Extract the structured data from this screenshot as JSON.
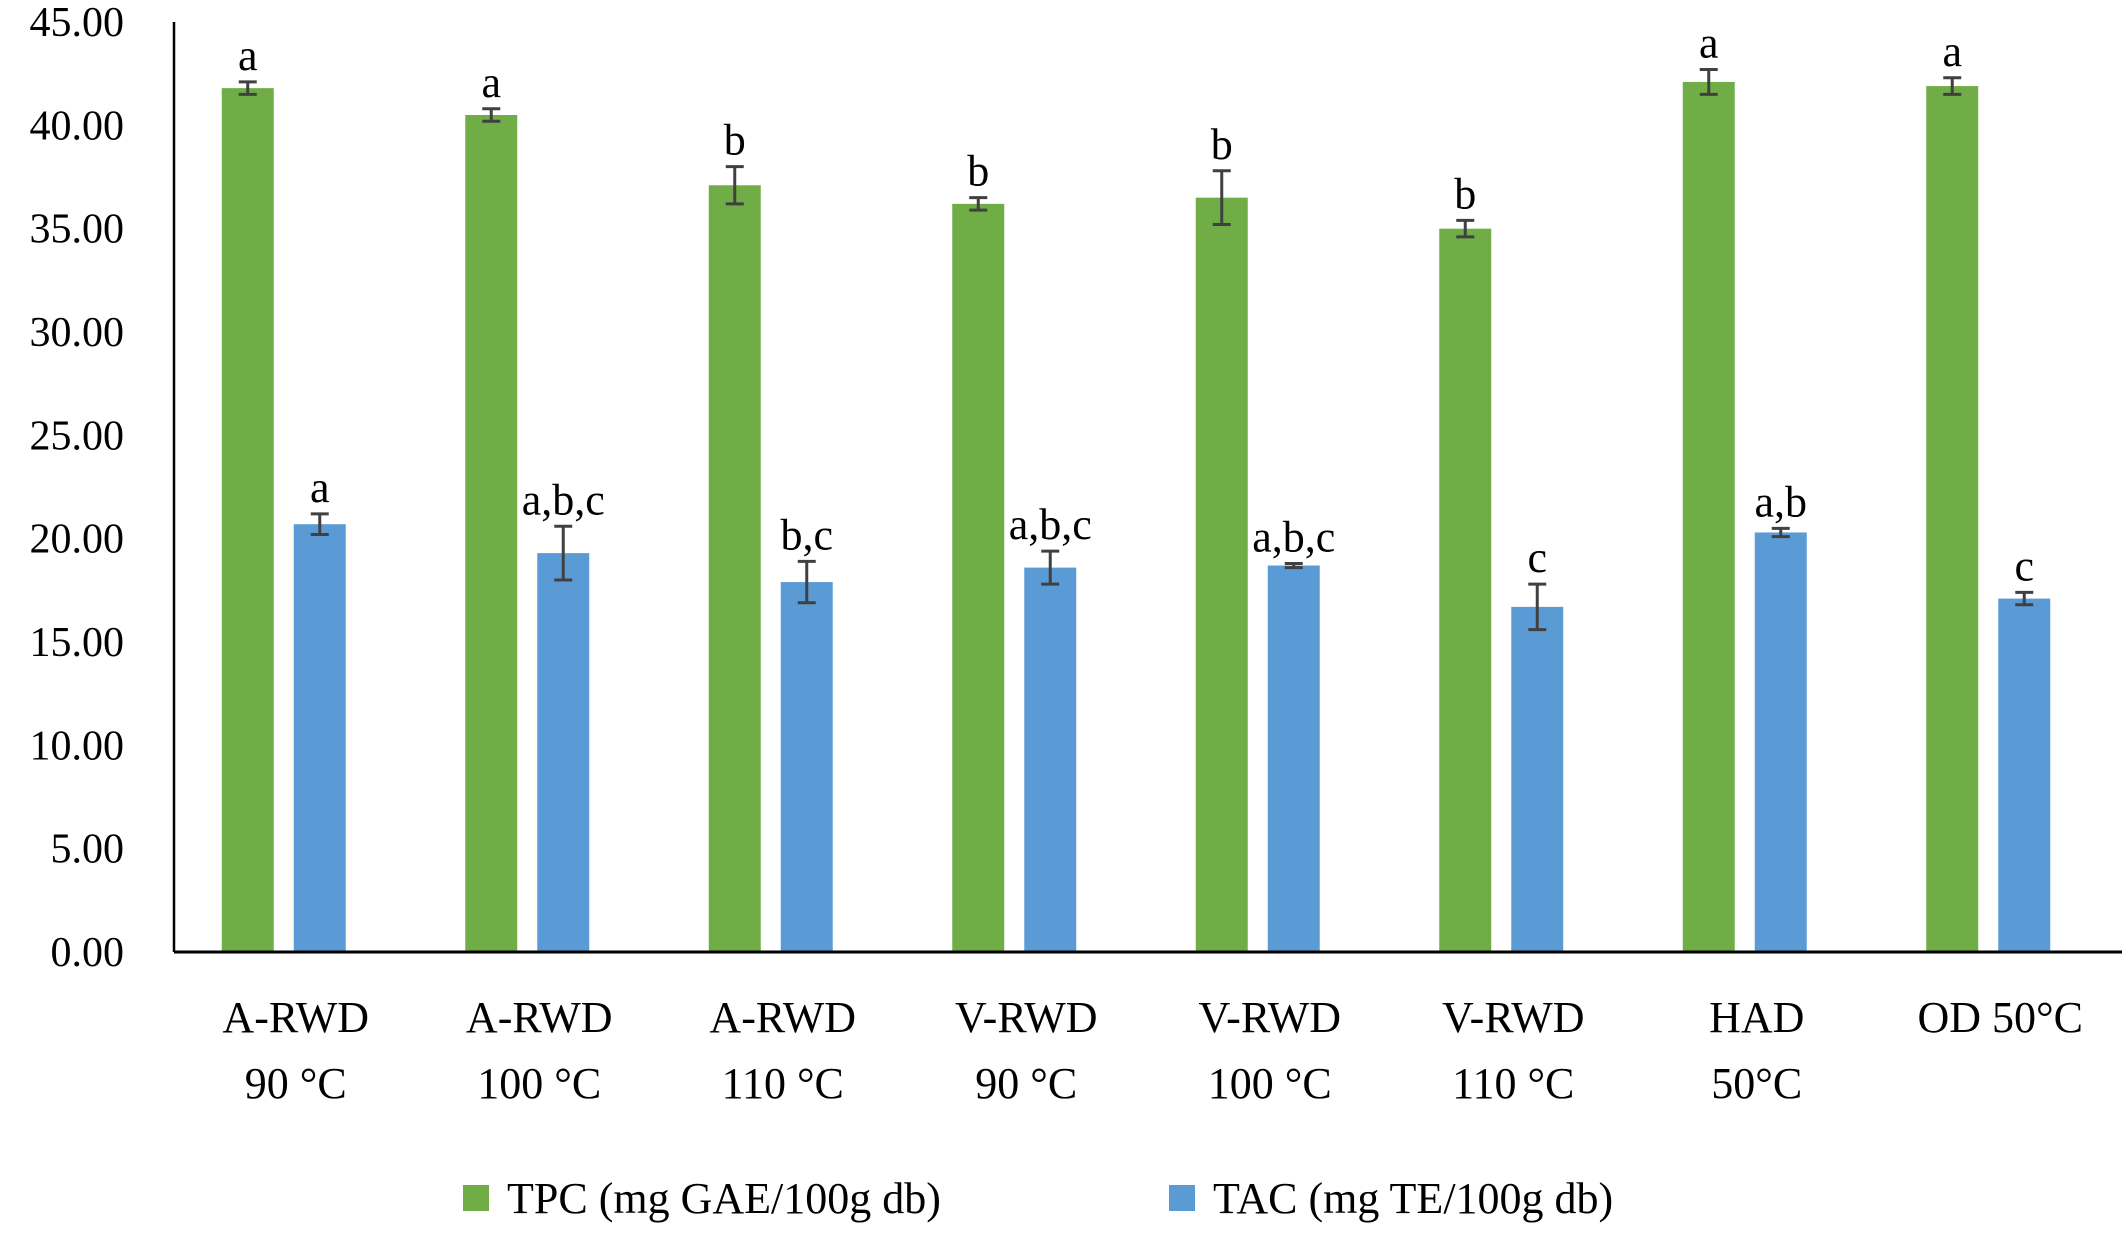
{
  "chart_data": {
    "type": "bar",
    "title": "",
    "xlabel": "",
    "ylabel": "",
    "ylim": [
      0,
      45
    ],
    "y_ticks": [
      "0.00",
      "5.00",
      "10.00",
      "15.00",
      "20.00",
      "25.00",
      "30.00",
      "35.00",
      "40.00",
      "45.00"
    ],
    "grid": false,
    "legend_position": "bottom",
    "categories": [
      [
        "A-RWD",
        "90 °C"
      ],
      [
        "A-RWD",
        "100 °C"
      ],
      [
        "A-RWD",
        "110 °C"
      ],
      [
        "V-RWD",
        "90 °C"
      ],
      [
        "V-RWD",
        "100 °C"
      ],
      [
        "V-RWD",
        "110 °C"
      ],
      [
        "HAD",
        "50°C"
      ],
      [
        "OD 50°C"
      ]
    ],
    "series": [
      {
        "name": "TPC (mg GAE/100g db)",
        "color": "#70AD47",
        "values": [
          41.8,
          40.5,
          37.1,
          36.2,
          36.5,
          35.0,
          42.1,
          41.9
        ],
        "errors": [
          0.3,
          0.3,
          0.9,
          0.3,
          1.3,
          0.4,
          0.6,
          0.4
        ],
        "labels": [
          "a",
          "a",
          "b",
          "b",
          "b",
          "b",
          "a",
          "a"
        ]
      },
      {
        "name": "TAC (mg TE/100g db)",
        "color": "#5B9BD5",
        "values": [
          20.7,
          19.3,
          17.9,
          18.6,
          18.7,
          16.7,
          20.3,
          17.1
        ],
        "errors": [
          0.5,
          1.3,
          1.0,
          0.8,
          0.1,
          1.1,
          0.2,
          0.3
        ],
        "labels": [
          "a",
          "a,b,c",
          "b,c",
          "a,b,c",
          "a,b,c",
          "c",
          "a,b",
          "c"
        ]
      }
    ],
    "colors": {
      "axis": "#000000",
      "error_bar": "#404040"
    }
  }
}
